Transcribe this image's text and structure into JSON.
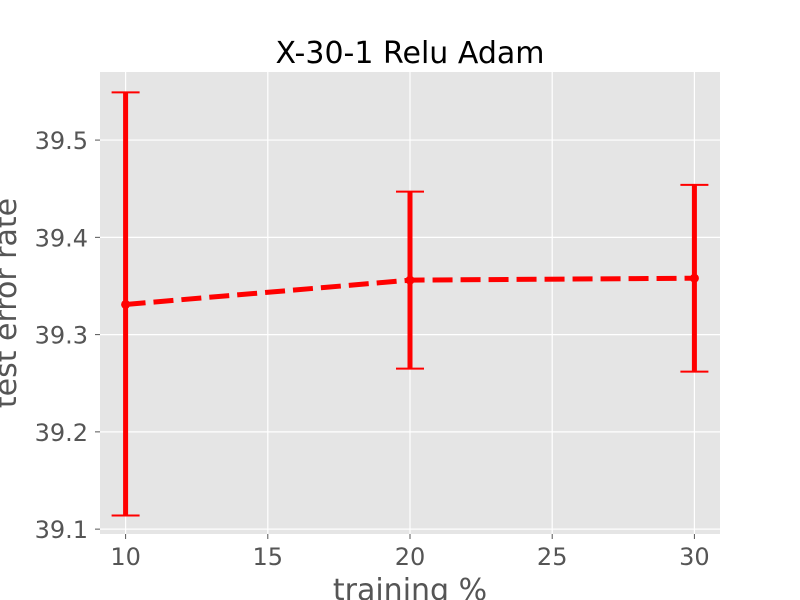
{
  "chart_data": {
    "type": "line",
    "title": "X-30-1 Relu Adam",
    "xlabel": "training %",
    "ylabel": "test error rate",
    "xlim": [
      9.1,
      30.9
    ],
    "ylim": [
      39.095,
      39.57
    ],
    "x_ticks": [
      10,
      15,
      20,
      25,
      30
    ],
    "x_tick_labels": [
      "10",
      "15",
      "20",
      "25",
      "30"
    ],
    "y_ticks": [
      39.1,
      39.2,
      39.3,
      39.4,
      39.5
    ],
    "y_tick_labels": [
      "39.1",
      "39.2",
      "39.3",
      "39.4",
      "39.5"
    ],
    "grid": true,
    "series": [
      {
        "x": [
          10,
          20,
          30
        ],
        "y": [
          39.331,
          39.356,
          39.358
        ],
        "error": [
          [
            39.114,
            39.549
          ],
          [
            39.265,
            39.447
          ],
          [
            39.262,
            39.454
          ]
        ],
        "color": "#ff0000",
        "line_style": "dashed",
        "marker": "circle"
      }
    ]
  },
  "colors": {
    "plot_background": "#e5e5e5",
    "grid": "#ffffff",
    "text": "#555555"
  }
}
